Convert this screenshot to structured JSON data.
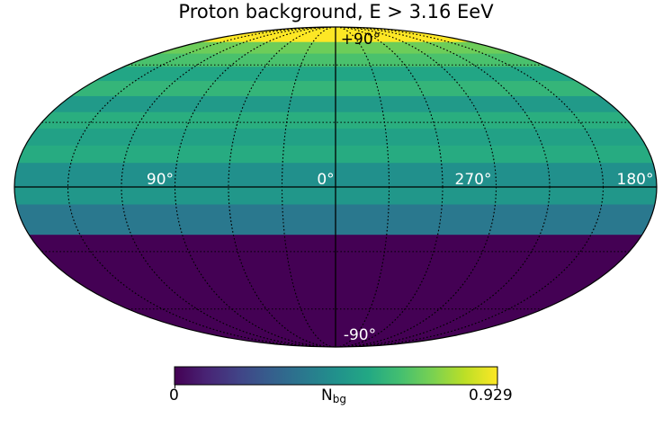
{
  "title": "Proton background, E > 3.16 EeV",
  "projection": "mollweide",
  "colormap": "viridis",
  "colorbar": {
    "min_label": "0",
    "max_label": "0.929",
    "label_main": "N",
    "label_sub": "bg",
    "min": 0,
    "max": 0.929
  },
  "longitude_labels": [
    "90°",
    "0°",
    "270°",
    "180°"
  ],
  "latitude_labels": {
    "top": "+90°",
    "bottom": "-90°"
  },
  "chart_data": {
    "type": "heatmap",
    "title": "Proton background, E > 3.16 EeV",
    "colorbar_label": "N_bg",
    "colorbar_range": [
      0,
      0.929
    ],
    "grid": true,
    "latitude_bands": [
      {
        "lat_range": [
          75,
          90
        ],
        "value": 0.929
      },
      {
        "lat_range": [
          67,
          75
        ],
        "value": 0.72
      },
      {
        "lat_range": [
          59,
          67
        ],
        "value": 0.66
      },
      {
        "lat_range": [
          51,
          59
        ],
        "value": 0.55
      },
      {
        "lat_range": [
          43,
          51
        ],
        "value": 0.61
      },
      {
        "lat_range": [
          35,
          43
        ],
        "value": 0.5
      },
      {
        "lat_range": [
          27,
          35
        ],
        "value": 0.58
      },
      {
        "lat_range": [
          19,
          27
        ],
        "value": 0.53
      },
      {
        "lat_range": [
          11,
          19
        ],
        "value": 0.57
      },
      {
        "lat_range": [
          0,
          11
        ],
        "value": 0.46
      },
      {
        "lat_range": [
          -8,
          0
        ],
        "value": 0.49
      },
      {
        "lat_range": [
          -22,
          -8
        ],
        "value": 0.37
      },
      {
        "lat_range": [
          -90,
          -22
        ],
        "value": 0
      }
    ]
  }
}
